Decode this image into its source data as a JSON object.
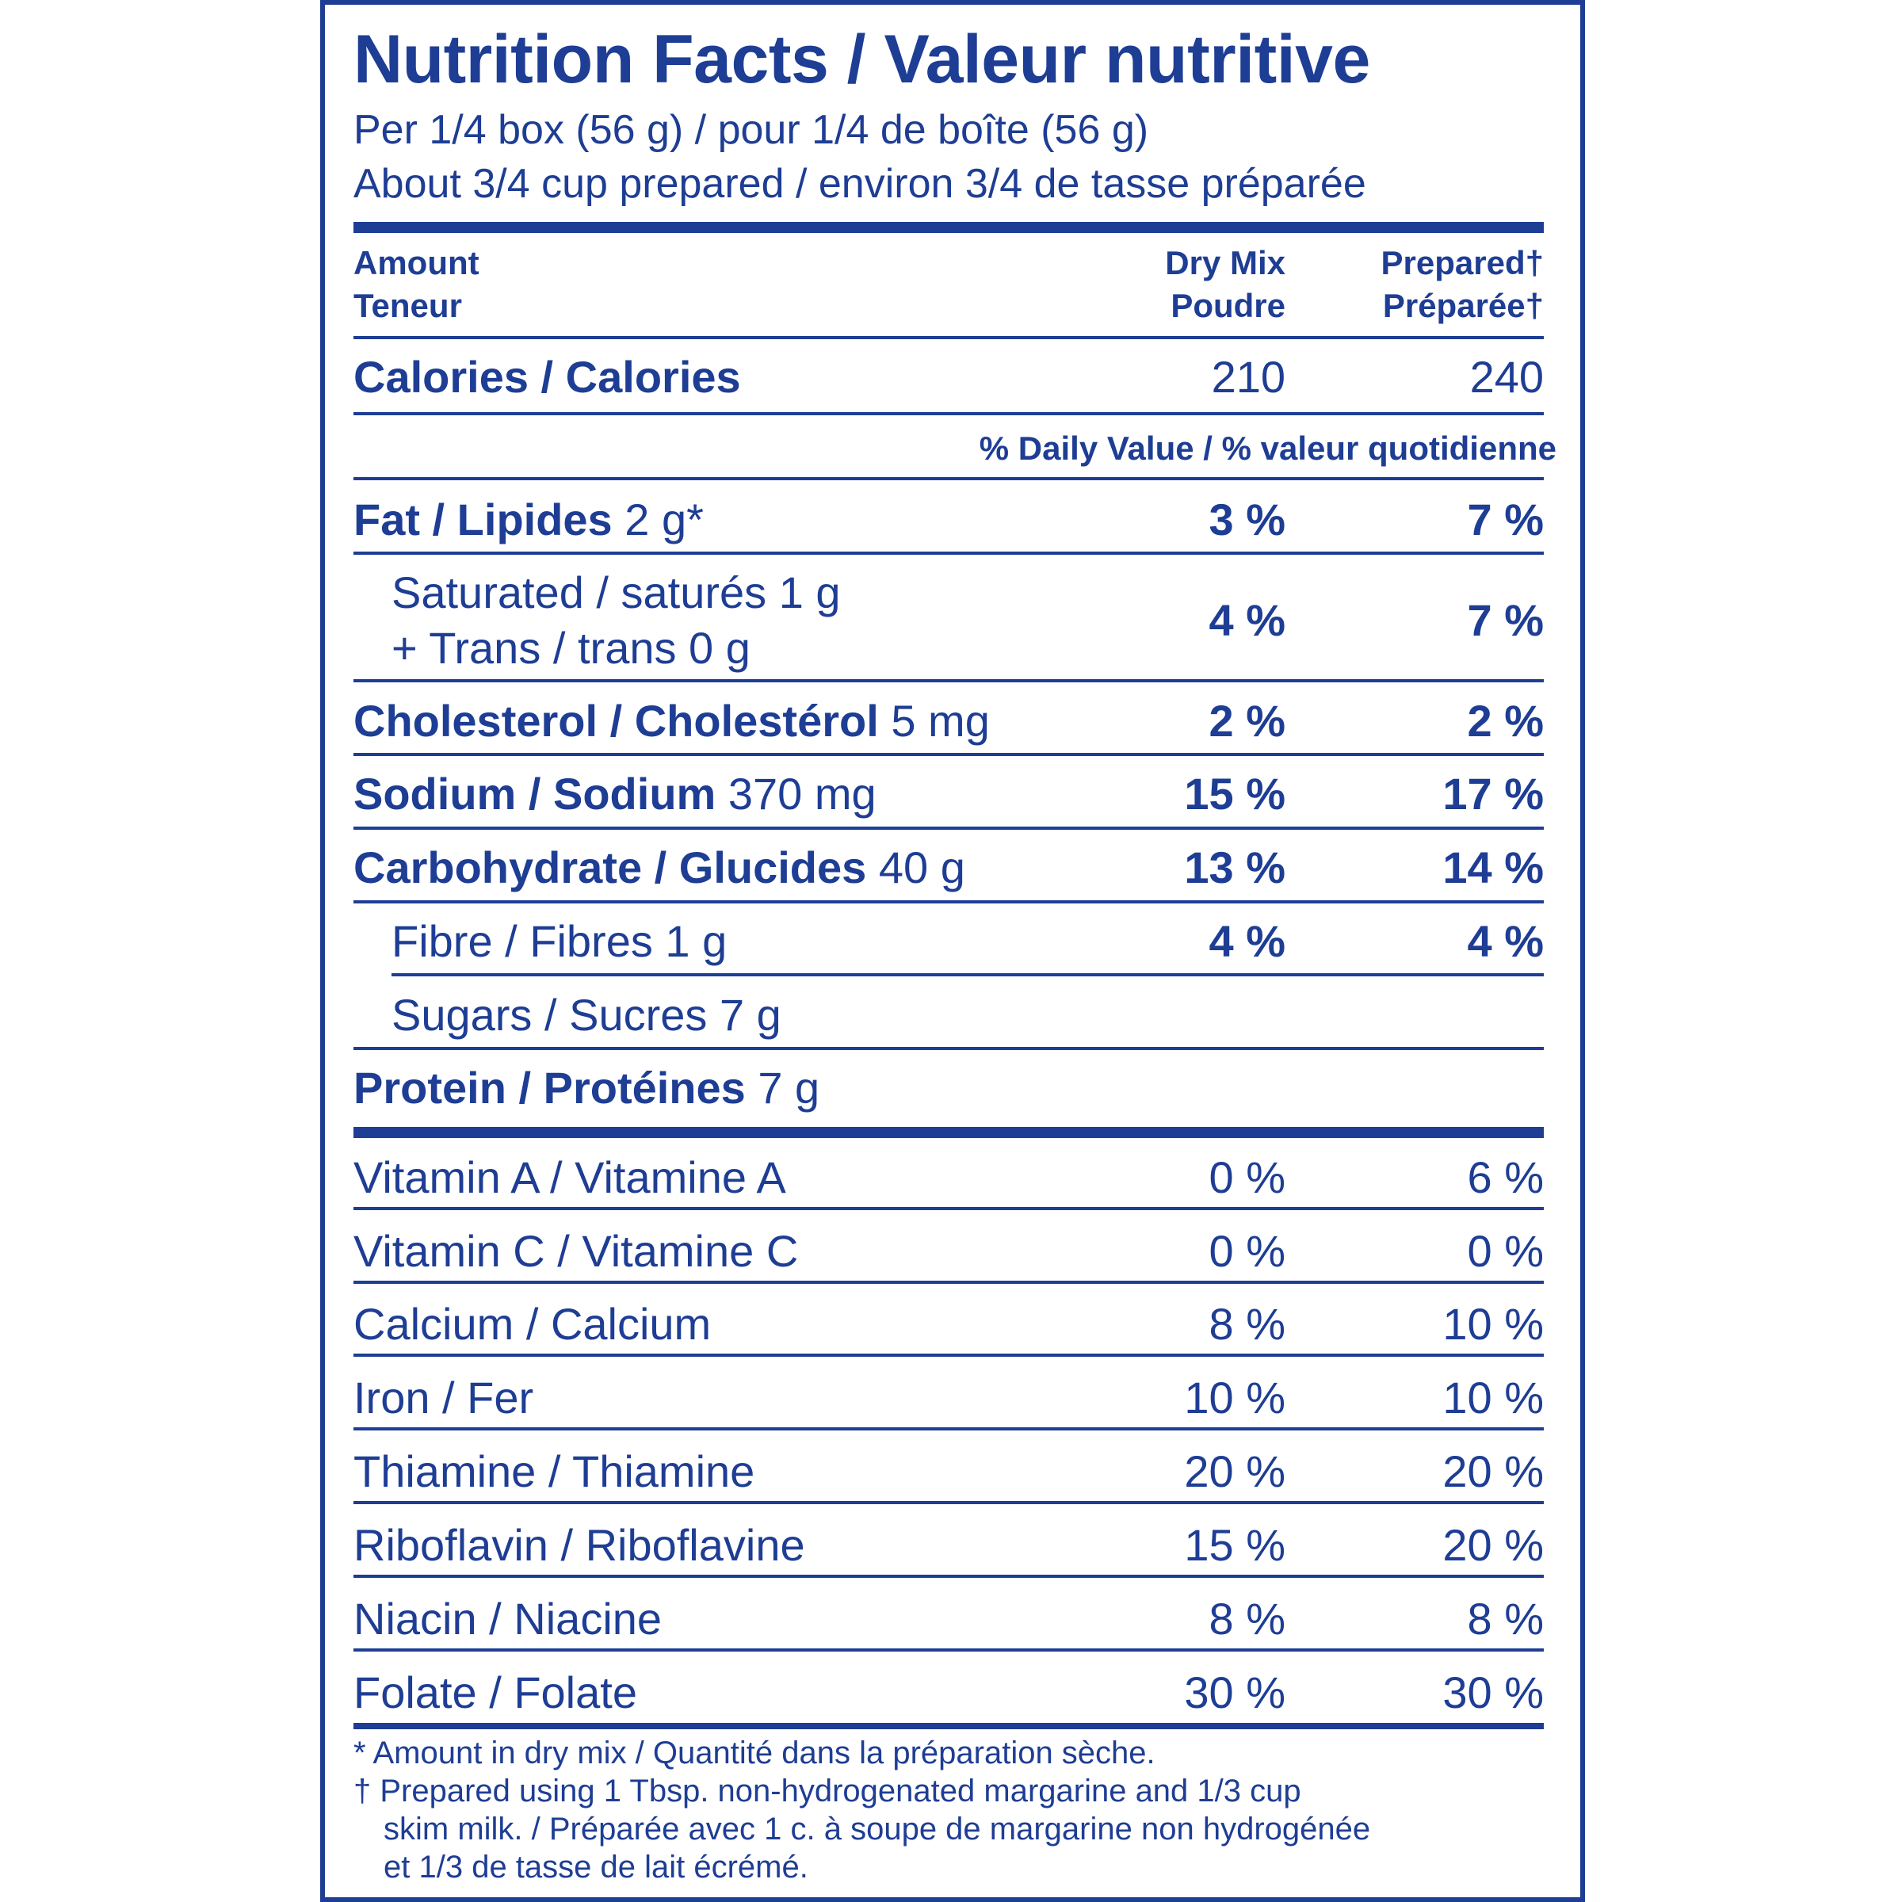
{
  "title": "Nutrition Facts / Valeur nutritive",
  "serving_line1": "Per 1/4 box (56 g) / pour 1/4 de boîte (56 g)",
  "serving_line2": "About 3/4 cup prepared / environ 3/4 de tasse préparée",
  "header": {
    "amount_en": "Amount",
    "amount_fr": "Teneur",
    "col1_en": "Dry Mix",
    "col1_fr": "Poudre",
    "col2_en": "Prepared†",
    "col2_fr": "Préparée†"
  },
  "calories": {
    "label": "Calories / Calories",
    "dry": "210",
    "prepared": "240"
  },
  "daily_value_label": "% Daily Value / % valeur quotidienne",
  "nutrients": {
    "fat": {
      "name": "Fat / Lipides",
      "amount": " 2 g*",
      "dry": "3 %",
      "prepared": "7 %"
    },
    "saturated": {
      "line1": "Saturated / saturés 1 g",
      "line2": "+ Trans / trans 0 g",
      "dry": "4 %",
      "prepared": "7 %"
    },
    "cholesterol": {
      "name": "Cholesterol / Cholestérol",
      "amount": " 5 mg",
      "dry": "2 %",
      "prepared": "2 %"
    },
    "sodium": {
      "name": "Sodium / Sodium",
      "amount": " 370 mg",
      "dry": "15 %",
      "prepared": "17 %"
    },
    "carbohydrate": {
      "name": "Carbohydrate / Glucides",
      "amount": " 40 g",
      "dry": "13 %",
      "prepared": "14 %"
    },
    "fibre": {
      "name": "Fibre / Fibres 1 g",
      "dry": "4 %",
      "prepared": "4 %"
    },
    "sugars": {
      "name": "Sugars / Sucres 7 g"
    },
    "protein": {
      "name": "Protein / Protéines",
      "amount": " 7 g"
    }
  },
  "vitamins": [
    {
      "name": "Vitamin A / Vitamine A",
      "dry": "0 %",
      "prepared": "6 %"
    },
    {
      "name": "Vitamin C / Vitamine C",
      "dry": "0 %",
      "prepared": "0 %"
    },
    {
      "name": "Calcium / Calcium",
      "dry": "8 %",
      "prepared": "10 %"
    },
    {
      "name": "Iron / Fer",
      "dry": "10 %",
      "prepared": "10 %"
    },
    {
      "name": "Thiamine / Thiamine",
      "dry": "20 %",
      "prepared": "20 %"
    },
    {
      "name": "Riboflavin / Riboflavine",
      "dry": "15 %",
      "prepared": "20 %"
    },
    {
      "name": "Niacin / Niacine",
      "dry": "8 %",
      "prepared": "8 %"
    },
    {
      "name": "Folate / Folate",
      "dry": "30 %",
      "prepared": "30 %"
    }
  ],
  "footnotes": {
    "line1": "* Amount in dry mix / Quantité dans la préparation sèche.",
    "line2": "† Prepared using 1 Tbsp. non-hydrogenated margarine and 1/3 cup",
    "line3": "skim milk. / Préparée avec 1 c. à soupe de margarine non hydrogénée",
    "line4": "et 1/3 de tasse de lait écrémé."
  }
}
